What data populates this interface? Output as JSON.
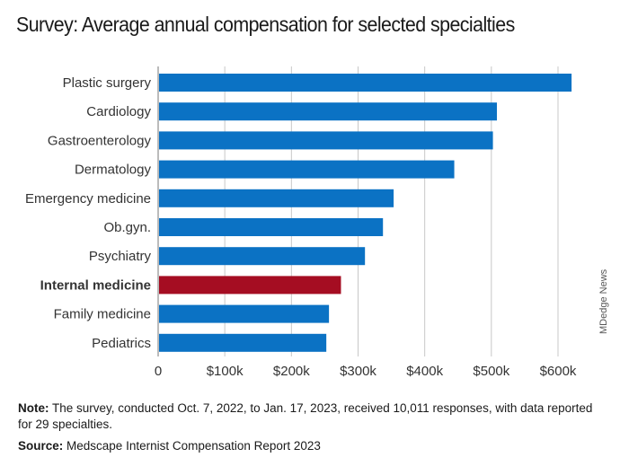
{
  "title": "Survey: Average annual compensation for selected specialties",
  "watermark": "MDedge News",
  "note": {
    "lead": "Note:",
    "text": "The survey, conducted Oct. 7, 2022, to Jan. 17, 2023, received 10,011 responses, with data reported for 29 specialties."
  },
  "source": {
    "lead": "Source:",
    "text": "Medscape Internist Compensation Report 2023"
  },
  "chart_data": {
    "type": "bar",
    "orientation": "horizontal",
    "categories": [
      "Plastic surgery",
      "Cardiology",
      "Gastroenterology",
      "Dermatology",
      "Emergency medicine",
      "Ob.gyn.",
      "Psychiatry",
      "Internal medicine",
      "Family medicine",
      "Pediatrics"
    ],
    "values": [
      619000,
      507000,
      501000,
      443000,
      352000,
      336000,
      309000,
      273000,
      255000,
      251000
    ],
    "highlight": "Internal medicine",
    "xlim": [
      0,
      600000
    ],
    "xticks": [
      0,
      100000,
      200000,
      300000,
      400000,
      500000,
      600000
    ],
    "xtick_labels": [
      "0",
      "$100k",
      "$200k",
      "$300k",
      "$400k",
      "$500k",
      "$600k"
    ],
    "grid": "vertical",
    "colors": {
      "bar": "#0b72c4",
      "highlight": "#a50d22",
      "highlight_label": "#a50d22",
      "grid": "#c8c8c8",
      "axis": "#777777"
    }
  }
}
